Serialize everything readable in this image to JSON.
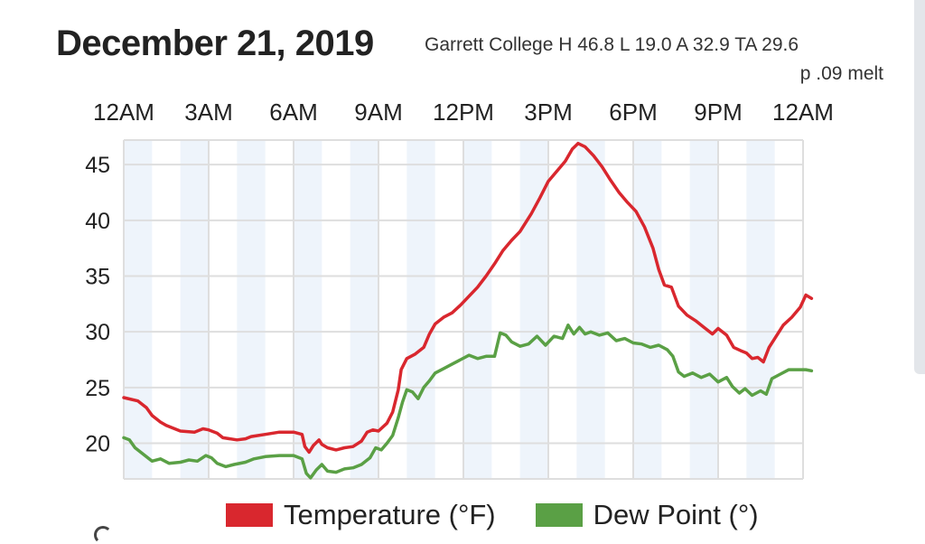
{
  "header": {
    "date": "December 21, 2019",
    "station_line1": "Garrett College H 46.8 L 19.0 A 32.9 TA 29.6",
    "station_line2": "p .09 melt"
  },
  "colors": {
    "temperature": "#d9272e",
    "dew_point": "#5aa045",
    "band": "#eef4fb",
    "grid": "#dedede"
  },
  "chart_data": {
    "type": "line",
    "x_tick_labels": [
      "12AM",
      "3AM",
      "6AM",
      "9AM",
      "12PM",
      "3PM",
      "6PM",
      "9PM",
      "12AM"
    ],
    "x_range_hours": [
      0,
      24
    ],
    "y_tick_labels": [
      "45",
      "40",
      "35",
      "30",
      "25",
      "20"
    ],
    "ylim": [
      16.8,
      47.2
    ],
    "grid": true,
    "legend_position": "bottom",
    "series": [
      {
        "name": "Temperature (°F)",
        "color": "#d9272e",
        "points": [
          [
            0,
            24.1
          ],
          [
            0.5,
            23.8
          ],
          [
            0.8,
            23.2
          ],
          [
            1.0,
            22.5
          ],
          [
            1.3,
            21.9
          ],
          [
            1.5,
            21.6
          ],
          [
            2.0,
            21.1
          ],
          [
            2.5,
            21.0
          ],
          [
            2.8,
            21.3
          ],
          [
            3.0,
            21.2
          ],
          [
            3.3,
            20.9
          ],
          [
            3.5,
            20.5
          ],
          [
            4.0,
            20.3
          ],
          [
            4.3,
            20.4
          ],
          [
            4.5,
            20.6
          ],
          [
            5.0,
            20.8
          ],
          [
            5.5,
            21.0
          ],
          [
            6.0,
            21.0
          ],
          [
            6.3,
            20.8
          ],
          [
            6.4,
            19.7
          ],
          [
            6.55,
            19.2
          ],
          [
            6.7,
            19.8
          ],
          [
            6.9,
            20.3
          ],
          [
            7.0,
            19.9
          ],
          [
            7.2,
            19.6
          ],
          [
            7.5,
            19.4
          ],
          [
            7.8,
            19.6
          ],
          [
            8.1,
            19.7
          ],
          [
            8.4,
            20.2
          ],
          [
            8.6,
            21.0
          ],
          [
            8.8,
            21.2
          ],
          [
            9.0,
            21.1
          ],
          [
            9.3,
            21.8
          ],
          [
            9.5,
            22.8
          ],
          [
            9.7,
            24.8
          ],
          [
            9.8,
            26.6
          ],
          [
            10.0,
            27.6
          ],
          [
            10.3,
            28.0
          ],
          [
            10.6,
            28.6
          ],
          [
            10.8,
            29.8
          ],
          [
            11.0,
            30.7
          ],
          [
            11.3,
            31.3
          ],
          [
            11.6,
            31.7
          ],
          [
            11.9,
            32.4
          ],
          [
            12.2,
            33.2
          ],
          [
            12.5,
            34.0
          ],
          [
            12.8,
            35.0
          ],
          [
            13.1,
            36.1
          ],
          [
            13.4,
            37.3
          ],
          [
            13.7,
            38.2
          ],
          [
            14.0,
            39.0
          ],
          [
            14.4,
            40.6
          ],
          [
            14.7,
            42.0
          ],
          [
            15.0,
            43.5
          ],
          [
            15.3,
            44.4
          ],
          [
            15.6,
            45.3
          ],
          [
            15.85,
            46.4
          ],
          [
            16.05,
            46.9
          ],
          [
            16.3,
            46.6
          ],
          [
            16.6,
            45.8
          ],
          [
            16.9,
            44.8
          ],
          [
            17.2,
            43.6
          ],
          [
            17.5,
            42.5
          ],
          [
            17.8,
            41.6
          ],
          [
            18.1,
            40.8
          ],
          [
            18.4,
            39.4
          ],
          [
            18.7,
            37.5
          ],
          [
            18.9,
            35.6
          ],
          [
            19.1,
            34.2
          ],
          [
            19.35,
            34.0
          ],
          [
            19.6,
            32.3
          ],
          [
            19.9,
            31.5
          ],
          [
            20.2,
            31.0
          ],
          [
            20.5,
            30.4
          ],
          [
            20.8,
            29.8
          ],
          [
            21.0,
            30.3
          ],
          [
            21.3,
            29.7
          ],
          [
            21.55,
            28.6
          ],
          [
            21.8,
            28.3
          ],
          [
            22.0,
            28.1
          ],
          [
            22.2,
            27.6
          ],
          [
            22.4,
            27.7
          ],
          [
            22.6,
            27.3
          ],
          [
            22.8,
            28.6
          ],
          [
            23.0,
            29.4
          ],
          [
            23.3,
            30.6
          ],
          [
            23.6,
            31.3
          ],
          [
            23.9,
            32.2
          ],
          [
            24.1,
            33.3
          ],
          [
            24.3,
            33.0
          ]
        ]
      },
      {
        "name": "Dew Point (°)",
        "color": "#5aa045",
        "points": [
          [
            0,
            20.5
          ],
          [
            0.2,
            20.3
          ],
          [
            0.4,
            19.6
          ],
          [
            0.7,
            19.0
          ],
          [
            1.0,
            18.4
          ],
          [
            1.3,
            18.6
          ],
          [
            1.6,
            18.2
          ],
          [
            2.0,
            18.3
          ],
          [
            2.3,
            18.5
          ],
          [
            2.6,
            18.4
          ],
          [
            2.9,
            18.9
          ],
          [
            3.1,
            18.7
          ],
          [
            3.3,
            18.2
          ],
          [
            3.6,
            17.9
          ],
          [
            3.9,
            18.1
          ],
          [
            4.3,
            18.3
          ],
          [
            4.6,
            18.6
          ],
          [
            5.0,
            18.8
          ],
          [
            5.5,
            18.9
          ],
          [
            6.0,
            18.9
          ],
          [
            6.3,
            18.6
          ],
          [
            6.45,
            17.3
          ],
          [
            6.6,
            16.9
          ],
          [
            6.8,
            17.6
          ],
          [
            7.0,
            18.1
          ],
          [
            7.2,
            17.5
          ],
          [
            7.5,
            17.4
          ],
          [
            7.8,
            17.7
          ],
          [
            8.1,
            17.8
          ],
          [
            8.4,
            18.1
          ],
          [
            8.7,
            18.7
          ],
          [
            8.9,
            19.6
          ],
          [
            9.1,
            19.4
          ],
          [
            9.3,
            20.0
          ],
          [
            9.5,
            20.7
          ],
          [
            9.7,
            22.3
          ],
          [
            9.85,
            23.7
          ],
          [
            10.0,
            24.8
          ],
          [
            10.2,
            24.6
          ],
          [
            10.4,
            24.0
          ],
          [
            10.6,
            25.0
          ],
          [
            10.8,
            25.6
          ],
          [
            11.0,
            26.3
          ],
          [
            11.3,
            26.7
          ],
          [
            11.6,
            27.1
          ],
          [
            11.9,
            27.5
          ],
          [
            12.2,
            27.9
          ],
          [
            12.5,
            27.6
          ],
          [
            12.8,
            27.8
          ],
          [
            13.1,
            27.8
          ],
          [
            13.3,
            29.9
          ],
          [
            13.5,
            29.7
          ],
          [
            13.7,
            29.1
          ],
          [
            14.0,
            28.7
          ],
          [
            14.3,
            28.9
          ],
          [
            14.6,
            29.6
          ],
          [
            14.9,
            28.8
          ],
          [
            15.2,
            29.6
          ],
          [
            15.5,
            29.4
          ],
          [
            15.7,
            30.6
          ],
          [
            15.9,
            29.8
          ],
          [
            16.1,
            30.4
          ],
          [
            16.3,
            29.8
          ],
          [
            16.5,
            30.0
          ],
          [
            16.8,
            29.7
          ],
          [
            17.1,
            29.9
          ],
          [
            17.4,
            29.2
          ],
          [
            17.7,
            29.4
          ],
          [
            18.0,
            29.0
          ],
          [
            18.3,
            28.9
          ],
          [
            18.6,
            28.6
          ],
          [
            18.9,
            28.8
          ],
          [
            19.2,
            28.4
          ],
          [
            19.4,
            27.8
          ],
          [
            19.6,
            26.4
          ],
          [
            19.8,
            26.0
          ],
          [
            20.1,
            26.3
          ],
          [
            20.4,
            25.9
          ],
          [
            20.7,
            26.2
          ],
          [
            21.0,
            25.5
          ],
          [
            21.3,
            25.9
          ],
          [
            21.5,
            25.1
          ],
          [
            21.75,
            24.5
          ],
          [
            21.95,
            24.9
          ],
          [
            22.2,
            24.3
          ],
          [
            22.5,
            24.7
          ],
          [
            22.7,
            24.4
          ],
          [
            22.9,
            25.8
          ],
          [
            23.2,
            26.2
          ],
          [
            23.5,
            26.6
          ],
          [
            23.8,
            26.6
          ],
          [
            24.1,
            26.6
          ],
          [
            24.3,
            26.5
          ]
        ]
      }
    ]
  },
  "legend": {
    "temperature_label": "Temperature (°F)",
    "dew_point_label": "Dew Point (°)"
  }
}
